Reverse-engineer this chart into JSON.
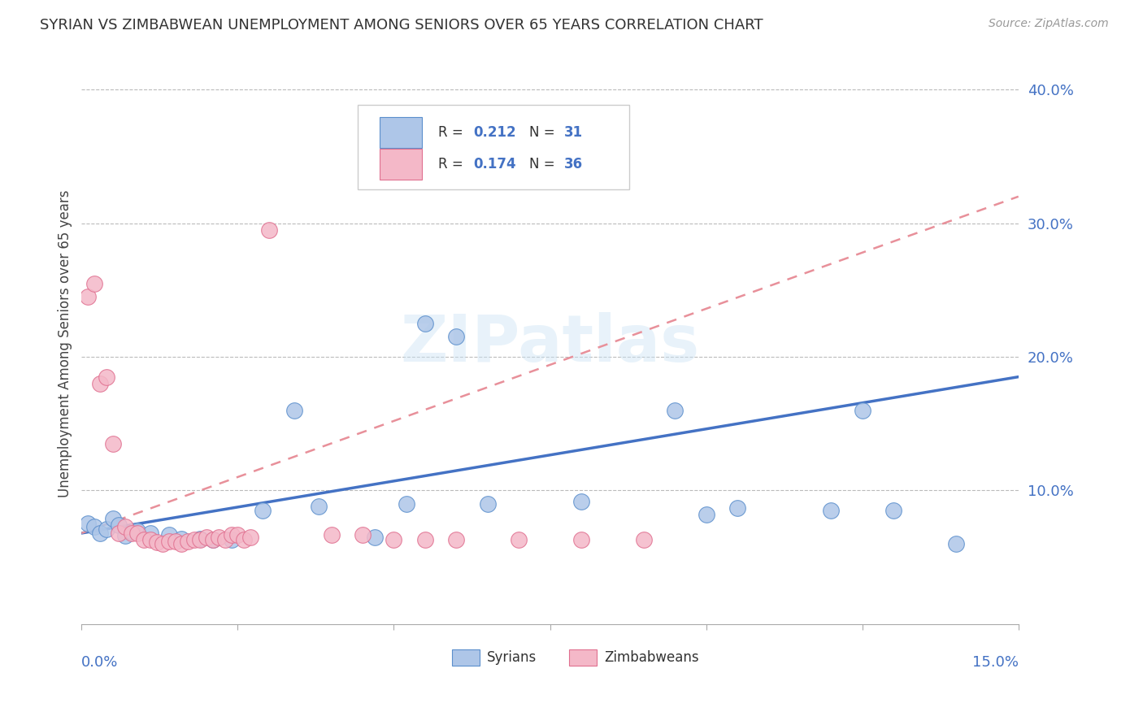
{
  "title": "SYRIAN VS ZIMBABWEAN UNEMPLOYMENT AMONG SENIORS OVER 65 YEARS CORRELATION CHART",
  "source": "Source: ZipAtlas.com",
  "ylabel": "Unemployment Among Seniors over 65 years",
  "xlim": [
    0.0,
    0.15
  ],
  "ylim": [
    0.0,
    0.42
  ],
  "ytick_vals": [
    0.1,
    0.2,
    0.3,
    0.4
  ],
  "ytick_labels": [
    "10.0%",
    "20.0%",
    "30.0%",
    "40.0%"
  ],
  "watermark": "ZIPatlas",
  "syrian_color": "#aec6e8",
  "syrian_edge_color": "#5b8fcc",
  "zimbabwean_color": "#f4b8c8",
  "zimbabwean_edge_color": "#e07090",
  "syrian_line_color": "#4472c4",
  "zimbabwean_line_color": "#e8909a",
  "syrian_scatter": [
    [
      0.001,
      0.075
    ],
    [
      0.002,
      0.073
    ],
    [
      0.003,
      0.068
    ],
    [
      0.004,
      0.071
    ],
    [
      0.005,
      0.079
    ],
    [
      0.006,
      0.074
    ],
    [
      0.007,
      0.066
    ],
    [
      0.008,
      0.069
    ],
    [
      0.009,
      0.07
    ],
    [
      0.011,
      0.068
    ],
    [
      0.014,
      0.067
    ],
    [
      0.016,
      0.064
    ],
    [
      0.019,
      0.064
    ],
    [
      0.021,
      0.063
    ],
    [
      0.024,
      0.063
    ],
    [
      0.029,
      0.085
    ],
    [
      0.034,
      0.16
    ],
    [
      0.038,
      0.088
    ],
    [
      0.047,
      0.065
    ],
    [
      0.052,
      0.09
    ],
    [
      0.055,
      0.225
    ],
    [
      0.06,
      0.215
    ],
    [
      0.065,
      0.09
    ],
    [
      0.08,
      0.092
    ],
    [
      0.095,
      0.16
    ],
    [
      0.1,
      0.082
    ],
    [
      0.105,
      0.087
    ],
    [
      0.12,
      0.085
    ],
    [
      0.125,
      0.16
    ],
    [
      0.13,
      0.085
    ],
    [
      0.14,
      0.06
    ]
  ],
  "zimbabwean_scatter": [
    [
      0.001,
      0.245
    ],
    [
      0.002,
      0.255
    ],
    [
      0.003,
      0.18
    ],
    [
      0.004,
      0.185
    ],
    [
      0.005,
      0.135
    ],
    [
      0.006,
      0.068
    ],
    [
      0.007,
      0.073
    ],
    [
      0.008,
      0.068
    ],
    [
      0.009,
      0.068
    ],
    [
      0.01,
      0.063
    ],
    [
      0.011,
      0.063
    ],
    [
      0.012,
      0.061
    ],
    [
      0.013,
      0.06
    ],
    [
      0.014,
      0.062
    ],
    [
      0.015,
      0.062
    ],
    [
      0.016,
      0.06
    ],
    [
      0.017,
      0.062
    ],
    [
      0.018,
      0.063
    ],
    [
      0.019,
      0.063
    ],
    [
      0.02,
      0.065
    ],
    [
      0.021,
      0.063
    ],
    [
      0.022,
      0.065
    ],
    [
      0.023,
      0.063
    ],
    [
      0.024,
      0.067
    ],
    [
      0.025,
      0.067
    ],
    [
      0.026,
      0.063
    ],
    [
      0.027,
      0.065
    ],
    [
      0.03,
      0.295
    ],
    [
      0.04,
      0.067
    ],
    [
      0.045,
      0.067
    ],
    [
      0.05,
      0.063
    ],
    [
      0.055,
      0.063
    ],
    [
      0.06,
      0.063
    ],
    [
      0.07,
      0.063
    ],
    [
      0.08,
      0.063
    ],
    [
      0.09,
      0.063
    ]
  ],
  "syrian_trendline": [
    0.0,
    0.15,
    0.068,
    0.185
  ],
  "zimbabwean_trendline": [
    0.0,
    0.15,
    0.068,
    0.32
  ],
  "background_color": "#ffffff",
  "grid_color": "#bbbbbb"
}
